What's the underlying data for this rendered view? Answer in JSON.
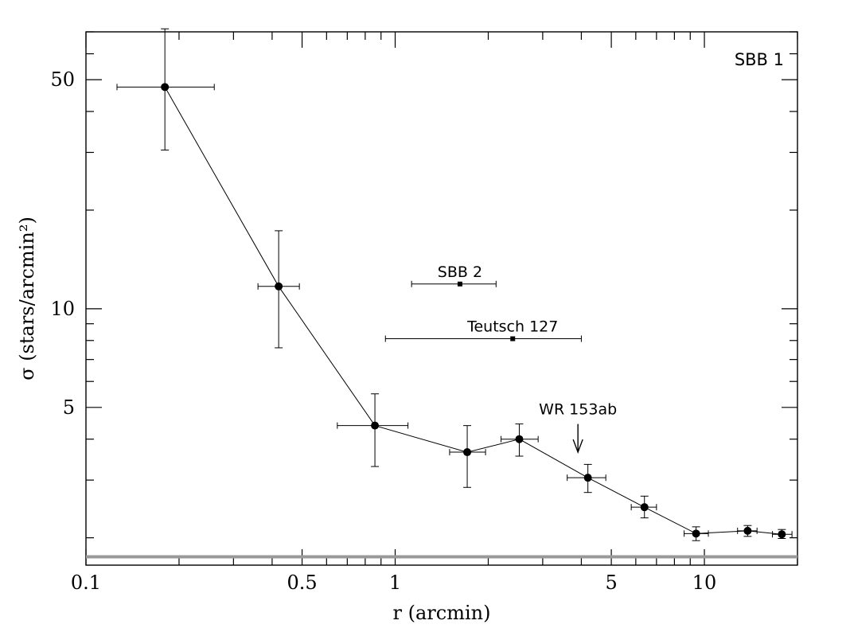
{
  "chart_data": {
    "type": "scatter",
    "title": "",
    "xlabel": "r (arcmin)",
    "ylabel": "σ (stars/arcmin²)",
    "xscale": "log",
    "yscale": "log",
    "xlim": [
      0.1,
      20
    ],
    "ylim": [
      1.65,
      70
    ],
    "x_tick_labels": [
      {
        "value": 0.1,
        "label": "0.1"
      },
      {
        "value": 0.5,
        "label": "0.5"
      },
      {
        "value": 1,
        "label": "1"
      },
      {
        "value": 5,
        "label": "5"
      },
      {
        "value": 10,
        "label": "10"
      }
    ],
    "y_tick_labels": [
      {
        "value": 5,
        "label": "5"
      },
      {
        "value": 10,
        "label": "10"
      },
      {
        "value": 50,
        "label": "50"
      }
    ],
    "grid": false,
    "corner_label": "SBB 1",
    "profile": {
      "connected": true,
      "points": [
        {
          "x": 0.18,
          "y": 47.5,
          "xerr": [
            0.126,
            0.26
          ],
          "yerr": [
            30.5,
            71.5
          ]
        },
        {
          "x": 0.42,
          "y": 11.7,
          "xerr": [
            0.36,
            0.49
          ],
          "yerr": [
            7.6,
            17.3
          ]
        },
        {
          "x": 0.86,
          "y": 4.4,
          "xerr": [
            0.65,
            1.1
          ],
          "yerr": [
            3.3,
            5.5
          ]
        },
        {
          "x": 1.71,
          "y": 3.65,
          "xerr": [
            1.5,
            1.96
          ],
          "yerr": [
            2.85,
            4.4
          ]
        },
        {
          "x": 2.52,
          "y": 4.0,
          "xerr": [
            2.2,
            2.9
          ],
          "yerr": [
            3.55,
            4.45
          ]
        },
        {
          "x": 4.2,
          "y": 3.05,
          "xerr": [
            3.6,
            4.8
          ],
          "yerr": [
            2.75,
            3.35
          ]
        },
        {
          "x": 6.4,
          "y": 2.48,
          "xerr": [
            5.8,
            7.0
          ],
          "yerr": [
            2.3,
            2.68
          ]
        },
        {
          "x": 9.4,
          "y": 2.06,
          "xerr": [
            8.6,
            10.3
          ],
          "yerr": [
            1.96,
            2.16
          ]
        },
        {
          "x": 13.8,
          "y": 2.1,
          "xerr": [
            12.8,
            14.8
          ],
          "yerr": [
            2.02,
            2.18
          ]
        },
        {
          "x": 17.8,
          "y": 2.05,
          "xerr": [
            16.6,
            19.2
          ],
          "yerr": [
            1.99,
            2.12
          ]
        }
      ]
    },
    "labeled_points": [
      {
        "label": "SBB 2",
        "x": 1.62,
        "y": 11.9,
        "xerr": [
          1.13,
          2.12
        ]
      },
      {
        "label": "Teutsch 127",
        "x": 2.4,
        "y": 8.1,
        "xerr": [
          0.93,
          4.0
        ]
      }
    ],
    "arrow_annotation": {
      "label": "WR 153ab",
      "x": 3.9,
      "y_top": 4.45,
      "y_tip": 3.65
    },
    "background_level": {
      "y": 1.75,
      "color": "#999999"
    }
  }
}
